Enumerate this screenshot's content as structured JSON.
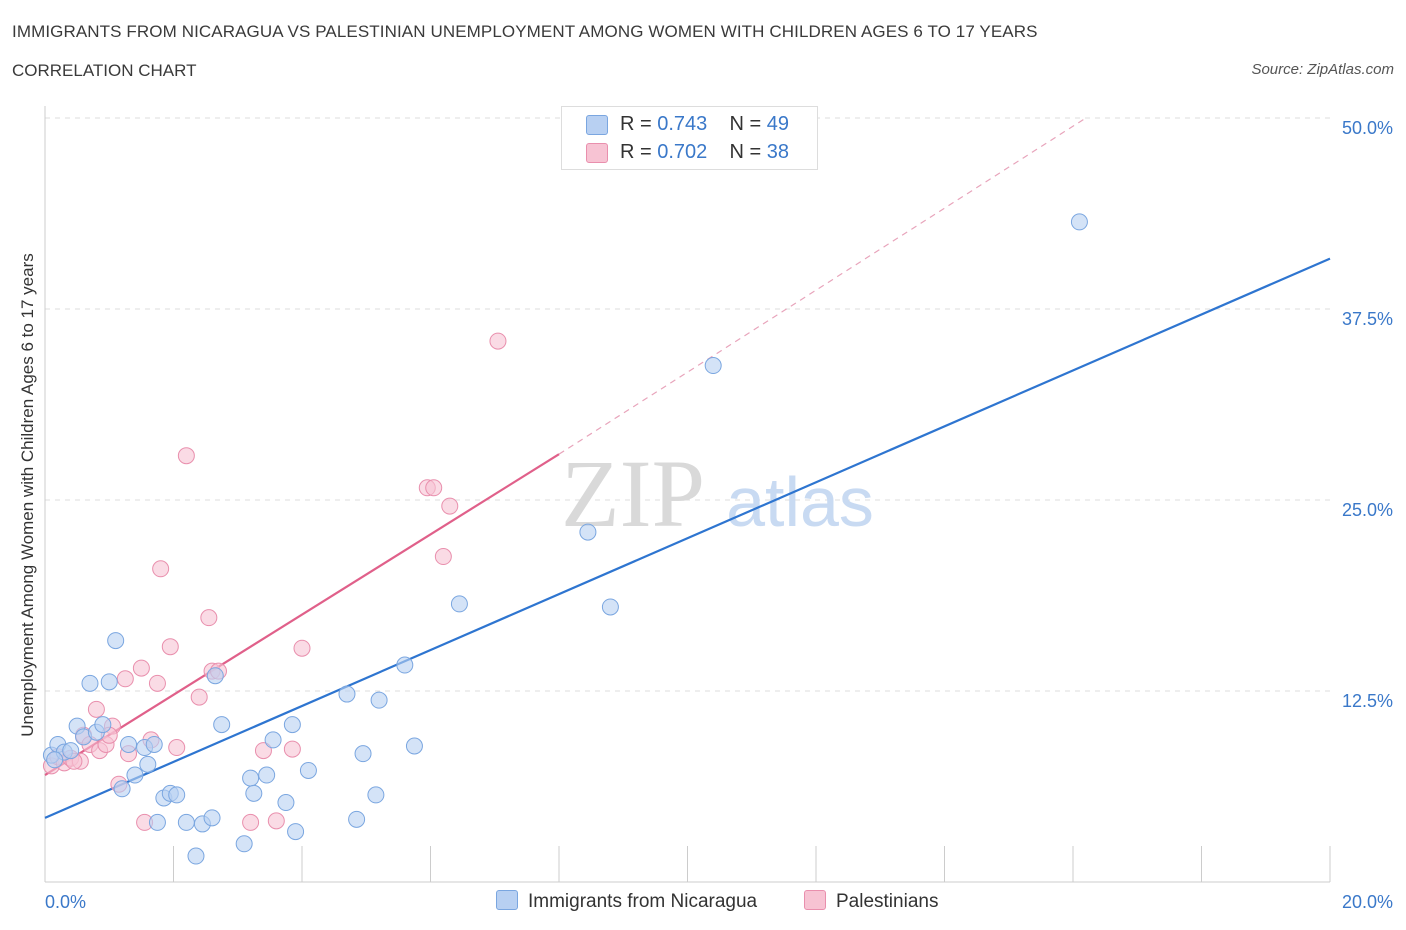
{
  "header": {
    "title": "IMMIGRANTS FROM NICARAGUA VS PALESTINIAN UNEMPLOYMENT AMONG WOMEN WITH CHILDREN AGES 6 TO 17 YEARS",
    "subtitle": "CORRELATION CHART",
    "source": "Source: ZipAtlas.com"
  },
  "watermark": {
    "zip": "ZIP",
    "atlas": "atlas"
  },
  "legend": {
    "r_label": "R =",
    "n_label": "N =",
    "series": [
      {
        "name": "Immigrants from Nicaragua",
        "r": "0.743",
        "n": "49"
      },
      {
        "name": "Palestinians",
        "r": "0.702",
        "n": "38"
      }
    ]
  },
  "colors": {
    "blue_fill": "#b8d0f2",
    "blue_stroke": "#7aa6e0",
    "blue_line": "#2e75d0",
    "pink_fill": "#f7c3d3",
    "pink_stroke": "#e98fad",
    "pink_line": "#e0608a",
    "tick_text": "#3a78c9"
  },
  "chart_data": {
    "type": "scatter",
    "title": "IMMIGRANTS FROM NICARAGUA VS PALESTINIAN UNEMPLOYMENT AMONG WOMEN WITH CHILDREN AGES 6 TO 17 YEARS",
    "xlabel": "",
    "ylabel": "Unemployment Among Women with Children Ages 6 to 17 years",
    "xlim": [
      0,
      20
    ],
    "ylim": [
      0,
      50
    ],
    "x_tick_labels": [
      "0.0%",
      "20.0%"
    ],
    "y_tick_values": [
      12.5,
      25,
      37.5,
      50
    ],
    "y_tick_labels": [
      "12.5%",
      "25.0%",
      "37.5%",
      "50.0%"
    ],
    "grid": true,
    "legend_position": "top-center",
    "series": [
      {
        "name": "Immigrants from Nicaragua",
        "color": "blue",
        "trend": {
          "x": [
            0,
            20
          ],
          "y": [
            4.2,
            40.8
          ],
          "dashed_extension": false
        },
        "points": [
          {
            "x": 0.1,
            "y": 8.3
          },
          {
            "x": 0.2,
            "y": 9.0
          },
          {
            "x": 0.3,
            "y": 8.5
          },
          {
            "x": 0.4,
            "y": 8.6
          },
          {
            "x": 0.5,
            "y": 10.2
          },
          {
            "x": 0.6,
            "y": 9.5
          },
          {
            "x": 0.7,
            "y": 13.0
          },
          {
            "x": 0.8,
            "y": 9.8
          },
          {
            "x": 0.9,
            "y": 10.3
          },
          {
            "x": 1.0,
            "y": 13.1
          },
          {
            "x": 1.1,
            "y": 15.8
          },
          {
            "x": 1.2,
            "y": 6.1
          },
          {
            "x": 1.3,
            "y": 9.0
          },
          {
            "x": 1.4,
            "y": 7.0
          },
          {
            "x": 1.55,
            "y": 8.8
          },
          {
            "x": 1.6,
            "y": 7.7
          },
          {
            "x": 1.7,
            "y": 9.0
          },
          {
            "x": 1.75,
            "y": 3.9
          },
          {
            "x": 1.85,
            "y": 5.5
          },
          {
            "x": 1.95,
            "y": 5.8
          },
          {
            "x": 2.05,
            "y": 5.7
          },
          {
            "x": 2.2,
            "y": 3.9
          },
          {
            "x": 2.35,
            "y": 1.7
          },
          {
            "x": 2.45,
            "y": 3.8
          },
          {
            "x": 2.6,
            "y": 4.2
          },
          {
            "x": 2.65,
            "y": 13.5
          },
          {
            "x": 2.75,
            "y": 10.3
          },
          {
            "x": 3.1,
            "y": 2.5
          },
          {
            "x": 3.2,
            "y": 6.8
          },
          {
            "x": 3.25,
            "y": 5.8
          },
          {
            "x": 3.45,
            "y": 7.0
          },
          {
            "x": 3.55,
            "y": 9.3
          },
          {
            "x": 3.75,
            "y": 5.2
          },
          {
            "x": 3.85,
            "y": 10.3
          },
          {
            "x": 3.9,
            "y": 3.3
          },
          {
            "x": 4.1,
            "y": 7.3
          },
          {
            "x": 4.7,
            "y": 12.3
          },
          {
            "x": 4.85,
            "y": 4.1
          },
          {
            "x": 4.95,
            "y": 8.4
          },
          {
            "x": 5.15,
            "y": 5.7
          },
          {
            "x": 5.2,
            "y": 11.9
          },
          {
            "x": 5.6,
            "y": 14.2
          },
          {
            "x": 5.75,
            "y": 8.9
          },
          {
            "x": 6.45,
            "y": 18.2
          },
          {
            "x": 8.45,
            "y": 22.9
          },
          {
            "x": 8.8,
            "y": 18.0
          },
          {
            "x": 10.4,
            "y": 33.8
          },
          {
            "x": 16.1,
            "y": 43.2
          },
          {
            "x": 0.15,
            "y": 8.0
          }
        ]
      },
      {
        "name": "Palestinians",
        "color": "pink",
        "trend": {
          "x": [
            0,
            8
          ],
          "y": [
            7.0,
            28.0
          ],
          "dashed_extension": true,
          "extension_to": [
            16.2,
            50
          ]
        },
        "points": [
          {
            "x": 0.1,
            "y": 7.6
          },
          {
            "x": 0.2,
            "y": 8.2
          },
          {
            "x": 0.3,
            "y": 7.8
          },
          {
            "x": 0.4,
            "y": 8.1
          },
          {
            "x": 0.55,
            "y": 7.9
          },
          {
            "x": 0.6,
            "y": 9.6
          },
          {
            "x": 0.7,
            "y": 9.0
          },
          {
            "x": 0.8,
            "y": 11.3
          },
          {
            "x": 0.85,
            "y": 8.6
          },
          {
            "x": 0.95,
            "y": 9.0
          },
          {
            "x": 1.05,
            "y": 10.2
          },
          {
            "x": 1.15,
            "y": 6.4
          },
          {
            "x": 1.25,
            "y": 13.3
          },
          {
            "x": 1.3,
            "y": 8.4
          },
          {
            "x": 1.5,
            "y": 14.0
          },
          {
            "x": 1.55,
            "y": 3.9
          },
          {
            "x": 1.65,
            "y": 9.3
          },
          {
            "x": 1.75,
            "y": 13.0
          },
          {
            "x": 1.8,
            "y": 20.5
          },
          {
            "x": 1.95,
            "y": 15.4
          },
          {
            "x": 2.05,
            "y": 8.8
          },
          {
            "x": 2.2,
            "y": 27.9
          },
          {
            "x": 2.4,
            "y": 12.1
          },
          {
            "x": 2.55,
            "y": 17.3
          },
          {
            "x": 2.6,
            "y": 13.8
          },
          {
            "x": 2.7,
            "y": 13.8
          },
          {
            "x": 3.2,
            "y": 3.9
          },
          {
            "x": 3.4,
            "y": 8.6
          },
          {
            "x": 3.6,
            "y": 4.0
          },
          {
            "x": 3.85,
            "y": 8.7
          },
          {
            "x": 4.0,
            "y": 15.3
          },
          {
            "x": 5.95,
            "y": 25.8
          },
          {
            "x": 6.05,
            "y": 25.8
          },
          {
            "x": 6.2,
            "y": 21.3
          },
          {
            "x": 6.3,
            "y": 24.6
          },
          {
            "x": 7.05,
            "y": 35.4
          },
          {
            "x": 0.45,
            "y": 7.9
          },
          {
            "x": 1.0,
            "y": 9.6
          }
        ]
      }
    ]
  }
}
